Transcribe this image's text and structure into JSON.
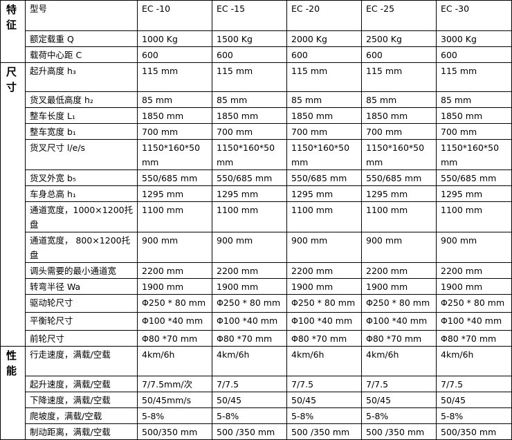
{
  "table": {
    "sections": [
      {
        "label": "特征",
        "rows": [
          {
            "label": "型号",
            "values": [
              "EC -10",
              "EC -15",
              "EC -20",
              "EC -25",
              "EC -30"
            ]
          },
          {
            "label": "额定载重 Q",
            "values": [
              "1000 Kg",
              "1500 Kg",
              "2000 Kg",
              "2500 Kg",
              "3000 Kg"
            ]
          },
          {
            "label": "载荷中心距 C",
            "values": [
              "600",
              "600",
              "600",
              "600",
              "600"
            ]
          }
        ]
      },
      {
        "label": "尺寸",
        "rows": [
          {
            "label": "起升高度 h₃",
            "values": [
              "115 mm",
              "115 mm",
              "115 mm",
              "115 mm",
              "115 mm"
            ]
          },
          {
            "label": "货叉最低高度 h₂",
            "values": [
              "85 mm",
              "85 mm",
              "85 mm",
              "85 mm",
              "85 mm"
            ]
          },
          {
            "label": "整车长度 L₁",
            "values": [
              "1850 mm",
              "1850 mm",
              "1850 mm",
              "1850 mm",
              "1850 mm"
            ]
          },
          {
            "label": "整车宽度 b₁",
            "values": [
              "700 mm",
              "700 mm",
              "700 mm",
              "700 mm",
              "700 mm"
            ]
          },
          {
            "label": "货叉尺寸 l/e/s",
            "values": [
              "1150*160*50 mm",
              "1150*160*50 mm",
              "1150*160*50 mm",
              "1150*160*50 mm",
              "1150*160*50 mm"
            ]
          },
          {
            "label": "货叉外宽 b₅",
            "values": [
              "550/685 mm",
              "550/685 mm",
              "550/685 mm",
              "550/685 mm",
              "550/685 mm"
            ]
          },
          {
            "label": "车身总高 h₁",
            "values": [
              "1295 mm",
              "1295 mm",
              "1295 mm",
              "1295 mm",
              "1295 mm"
            ]
          },
          {
            "label": "通道宽度，1000×1200托盘",
            "values": [
              "1100 mm",
              "1100 mm",
              "1100 mm",
              "1100 mm",
              "1100 mm"
            ]
          },
          {
            "label": "通道宽度， 800×1200托盘",
            "values": [
              "900 mm",
              "900 mm",
              "900 mm",
              "900 mm",
              "900 mm"
            ]
          },
          {
            "label": "调头需要的最小通道宽",
            "values": [
              "2200 mm",
              "2200 mm",
              "2200 mm",
              "2200 mm",
              "2200 mm"
            ]
          },
          {
            "label": "转弯半径 Wa",
            "values": [
              "1900 mm",
              "1900 mm",
              "1900 mm",
              "1900 mm",
              "1900 mm"
            ]
          },
          {
            "label": "驱动轮尺寸",
            "values": [
              "Φ250 * 80 mm",
              "Φ250 * 80 mm",
              "Φ250 * 80 mm",
              "Φ250 * 80 mm",
              "Φ250 * 80 mm"
            ]
          },
          {
            "label": "平衡轮尺寸",
            "values": [
              "Φ100 *40 mm",
              "Φ100 *40 mm",
              "Φ100 *40 mm",
              "Φ100 *40 mm",
              "Φ100 *40 mm"
            ]
          },
          {
            "label": "前轮尺寸",
            "values": [
              "Φ80 *70 mm",
              "Φ80 *70 mm",
              "Φ80 *70 mm",
              "Φ80 *70 mm",
              "Φ80 *70 mm"
            ]
          }
        ]
      },
      {
        "label": "性能",
        "rows": [
          {
            "label": "行走速度，满载/空载",
            "values": [
              "4km/6h",
              "4km/6h",
              "4km/6h",
              "4km/6h",
              "4km/6h"
            ]
          },
          {
            "label": "起升速度，满载/空载",
            "values": [
              "7/7.5mm/次",
              "7/7.5",
              "7/7.5",
              "7/7.5",
              "7/7.5"
            ]
          },
          {
            "label": "下降速度，满载/空载",
            "values": [
              "50/45mm/s",
              "50/45",
              "50/45",
              "50/45",
              "50/45"
            ]
          },
          {
            "label": "爬坡度，满载/空载",
            "values": [
              "5-8%",
              "5-8%",
              "5-8%",
              "5-8%",
              "5-8%"
            ]
          },
          {
            "label": "制动距离，满载/空载",
            "values": [
              "500/350 mm",
              "500 /350 mm",
              "500 /350 mm",
              "500 /350 mm",
              "500/350 mm"
            ]
          }
        ]
      }
    ]
  }
}
